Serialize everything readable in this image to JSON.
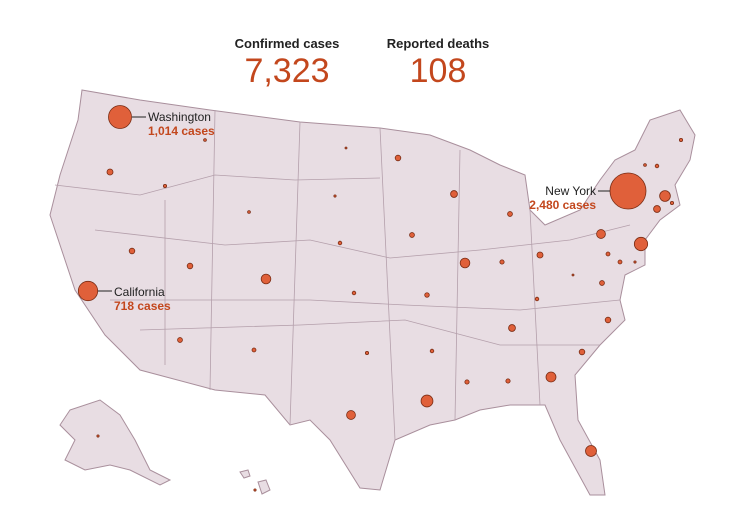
{
  "header": {
    "cases_title": "Confirmed cases",
    "cases": {
      "value": 7323,
      "label": "7,323"
    },
    "deaths_title": "Reported deaths",
    "deaths": 108
  },
  "labeled_states": [
    {
      "name": "Washington",
      "value": 1014,
      "value_label": "1,014 cases"
    },
    {
      "name": "California",
      "value": 718,
      "value_label": "718 cases"
    },
    {
      "name": "New York",
      "value": 2480,
      "value_label": "2,480 cases"
    }
  ],
  "other_values": [
    70,
    20,
    15,
    5,
    10,
    15,
    60,
    60,
    180,
    25,
    25,
    60,
    45,
    40,
    20,
    45,
    30,
    150,
    270,
    25,
    35,
    35,
    90,
    190,
    230,
    60,
    60,
    45,
    2,
    25,
    70,
    35,
    180,
    45,
    90,
    150,
    340,
    30,
    30,
    10,
    90,
    220,
    20,
    25,
    15,
    20,
    10,
    10
  ]
}
